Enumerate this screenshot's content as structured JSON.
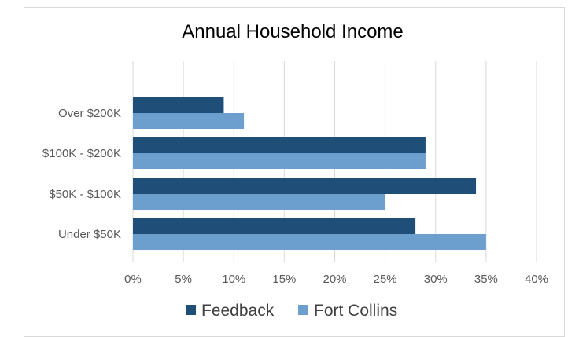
{
  "chart_data": {
    "type": "bar",
    "orientation": "horizontal",
    "title": "Annual Household Income",
    "categories": [
      "Over $200K",
      "$100K - $200K",
      "$50K - $100K",
      "Under $50K"
    ],
    "series": [
      {
        "name": "Feedback",
        "color": "#1f4e79",
        "values": [
          9,
          29,
          34,
          28
        ]
      },
      {
        "name": "Fort Collins",
        "color": "#6c9fcd",
        "values": [
          11,
          29,
          25,
          35
        ]
      }
    ],
    "xlim": [
      0,
      40
    ],
    "x_ticks": [
      "0%",
      "5%",
      "10%",
      "15%",
      "20%",
      "25%",
      "30%",
      "35%",
      "40%"
    ],
    "grid": true,
    "legend_position": "bottom"
  }
}
